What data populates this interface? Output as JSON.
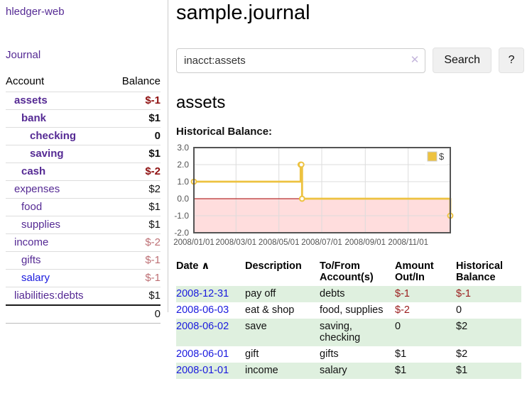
{
  "app": {
    "title": "hledger-web"
  },
  "colors": {
    "link_purple": "#552a94",
    "link_blue": "#1a1ade",
    "negative_strong": "#8f1111",
    "negative_soft": "#bd6f74",
    "register_negative": "#9a1c1c",
    "row_stripe_green": "#dff0df",
    "chart_line_gold": "#edc240"
  },
  "sidebar": {
    "journal_link": "Journal",
    "table": {
      "headers": {
        "account": "Account",
        "balance": "Balance"
      },
      "rows": [
        {
          "account": "assets",
          "balance": "$-1",
          "level": 1,
          "bold": true,
          "balance_tone": "negative-strong"
        },
        {
          "account": "bank",
          "balance": "$1",
          "level": 2,
          "bold": true,
          "balance_tone": "normal"
        },
        {
          "account": "checking",
          "balance": "0",
          "level": 3,
          "bold": true,
          "balance_tone": "normal"
        },
        {
          "account": "saving",
          "balance": "$1",
          "level": 3,
          "bold": true,
          "balance_tone": "normal"
        },
        {
          "account": "cash",
          "balance": "$-2",
          "level": 2,
          "bold": true,
          "balance_tone": "negative-strong"
        },
        {
          "account": "expenses",
          "balance": "$2",
          "level": 1,
          "bold": false,
          "balance_tone": "normal"
        },
        {
          "account": "food",
          "balance": "$1",
          "level": 2,
          "bold": false,
          "balance_tone": "normal"
        },
        {
          "account": "supplies",
          "balance": "$1",
          "level": 2,
          "bold": false,
          "balance_tone": "normal"
        },
        {
          "account": "income",
          "balance": "$-2",
          "level": 1,
          "bold": false,
          "balance_tone": "negative-soft"
        },
        {
          "account": "gifts",
          "balance": "$-1",
          "level": 2,
          "bold": false,
          "balance_tone": "negative-soft"
        },
        {
          "account": "salary",
          "balance": "$-1",
          "level": 2,
          "bold": false,
          "balance_tone": "negative-soft",
          "link_color": "blue"
        },
        {
          "account": "liabilities:debts",
          "balance": "$1",
          "level": 1,
          "bold": false,
          "balance_tone": "normal"
        }
      ],
      "total": "0"
    }
  },
  "main": {
    "page_title": "sample.journal",
    "search": {
      "value": "inacct:assets",
      "clear_icon": "✕",
      "button_label": "Search",
      "help_label": "?"
    },
    "account_heading": "assets",
    "chart_label": "Historical Balance:"
  },
  "chart_data": {
    "type": "line",
    "title": "Historical Balance:",
    "step": true,
    "series": [
      {
        "name": "$",
        "color": "#edc240",
        "points": [
          [
            "2008-01-01",
            1
          ],
          [
            "2008-06-01",
            2
          ],
          [
            "2008-06-02",
            2
          ],
          [
            "2008-06-03",
            0
          ],
          [
            "2008-12-31",
            -1
          ]
        ]
      }
    ],
    "x_range": [
      "2008-01-01",
      "2008-12-31"
    ],
    "ylim": [
      -2,
      3
    ],
    "y_ticks": [
      "3.0",
      "2.0",
      "1.0",
      "0.0",
      "-1.0",
      "-2.0"
    ],
    "x_ticks": [
      "2008/01/01",
      "2008/03/01",
      "2008/05/01",
      "2008/07/01",
      "2008/09/01",
      "2008/11/01"
    ],
    "grid": true,
    "negative_region_fill": "#ffdddd",
    "zero_line_color": "#a40000",
    "legend": {
      "label": "$",
      "position": "top-right"
    }
  },
  "register": {
    "columns": [
      "Date",
      "Description",
      "To/From Account(s)",
      "Amount Out/In",
      "Historical Balance"
    ],
    "sort_icon": "∧",
    "rows": [
      {
        "date": "2008-12-31",
        "description": "pay off",
        "accounts": "debts",
        "amount": "$-1",
        "balance": "$-1",
        "amount_negative": true,
        "balance_negative": true
      },
      {
        "date": "2008-06-03",
        "description": "eat & shop",
        "accounts": "food, supplies",
        "amount": "$-2",
        "balance": "0",
        "amount_negative": true,
        "balance_negative": false
      },
      {
        "date": "2008-06-02",
        "description": "save",
        "accounts": "saving, checking",
        "amount": "0",
        "balance": "$2",
        "amount_negative": false,
        "balance_negative": false
      },
      {
        "date": "2008-06-01",
        "description": "gift",
        "accounts": "gifts",
        "amount": "$1",
        "balance": "$2",
        "amount_negative": false,
        "balance_negative": false
      },
      {
        "date": "2008-01-01",
        "description": "income",
        "accounts": "salary",
        "amount": "$1",
        "balance": "$1",
        "amount_negative": false,
        "balance_negative": false
      }
    ]
  }
}
